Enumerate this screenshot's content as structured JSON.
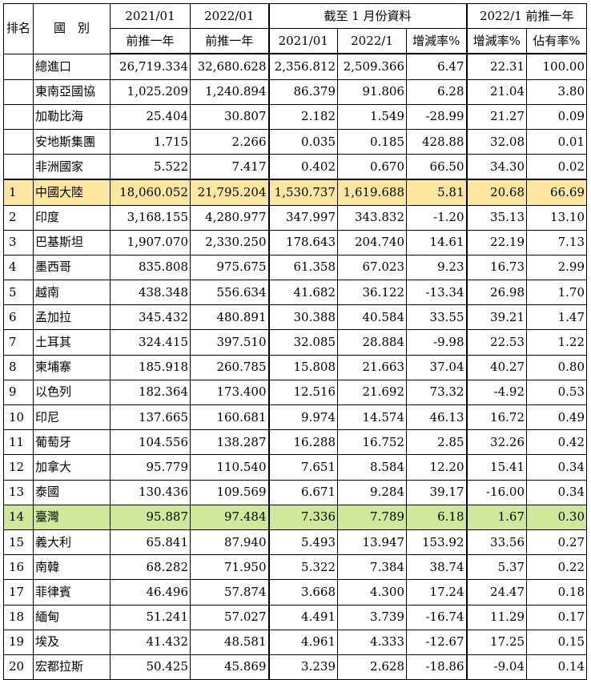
{
  "header": {
    "rank": "排名",
    "country": "國　別",
    "col_2021_line1": "2021/01",
    "col_2021_line2": "前推一年",
    "col_2022_line1": "2022/01",
    "col_2022_line2": "前推一年",
    "jan_group": "截至 1 月份資料",
    "jan_2021": "2021/01",
    "jan_2022": "2022/1",
    "jan_change": "增減率%",
    "trail_group": "2022/1 前推一年",
    "trail_change": "增減率%",
    "trail_share": "佔有率%"
  },
  "summary_rows": [
    {
      "rank": "",
      "name": "總進口",
      "v2021": "26,719.334",
      "v2022": "32,680.628",
      "j2021": "2,356.812",
      "j2022": "2,509.366",
      "jchg": "6.47",
      "tchg": "22.31",
      "share": "100.00"
    },
    {
      "rank": "",
      "name": "東南亞國協",
      "v2021": "1,025.209",
      "v2022": "1,240.894",
      "j2021": "86.379",
      "j2022": "91.806",
      "jchg": "6.28",
      "tchg": "21.04",
      "share": "3.80"
    },
    {
      "rank": "",
      "name": "加勒比海",
      "v2021": "25.404",
      "v2022": "30.807",
      "j2021": "2.182",
      "j2022": "1.549",
      "jchg": "-28.99",
      "tchg": "21.27",
      "share": "0.09"
    },
    {
      "rank": "",
      "name": "安地斯集團",
      "v2021": "1.715",
      "v2022": "2.266",
      "j2021": "0.035",
      "j2022": "0.185",
      "jchg": "428.88",
      "tchg": "32.08",
      "share": "0.01"
    },
    {
      "rank": "",
      "name": "非洲國家",
      "v2021": "5.522",
      "v2022": "7.417",
      "j2021": "0.402",
      "j2022": "0.670",
      "jchg": "66.50",
      "tchg": "34.30",
      "share": "0.02"
    }
  ],
  "ranked_rows": [
    {
      "rank": "1",
      "name": "中國大陸",
      "v2021": "18,060.052",
      "v2022": "21,795.204",
      "j2021": "1,530.737",
      "j2022": "1,619.688",
      "jchg": "5.81",
      "tchg": "20.68",
      "share": "66.69"
    },
    {
      "rank": "2",
      "name": "印度",
      "v2021": "3,168.155",
      "v2022": "4,280.977",
      "j2021": "347.997",
      "j2022": "343.832",
      "jchg": "-1.20",
      "tchg": "35.13",
      "share": "13.10"
    },
    {
      "rank": "3",
      "name": "巴基斯坦",
      "v2021": "1,907.070",
      "v2022": "2,330.250",
      "j2021": "178.643",
      "j2022": "204.740",
      "jchg": "14.61",
      "tchg": "22.19",
      "share": "7.13"
    },
    {
      "rank": "4",
      "name": "墨西哥",
      "v2021": "835.808",
      "v2022": "975.675",
      "j2021": "61.358",
      "j2022": "67.023",
      "jchg": "9.23",
      "tchg": "16.73",
      "share": "2.99"
    },
    {
      "rank": "5",
      "name": "越南",
      "v2021": "438.348",
      "v2022": "556.634",
      "j2021": "41.682",
      "j2022": "36.122",
      "jchg": "-13.34",
      "tchg": "26.98",
      "share": "1.70"
    },
    {
      "rank": "6",
      "name": "孟加拉",
      "v2021": "345.432",
      "v2022": "480.891",
      "j2021": "30.388",
      "j2022": "40.584",
      "jchg": "33.55",
      "tchg": "39.21",
      "share": "1.47"
    },
    {
      "rank": "7",
      "name": "土耳其",
      "v2021": "324.415",
      "v2022": "397.510",
      "j2021": "32.085",
      "j2022": "28.884",
      "jchg": "-9.98",
      "tchg": "22.53",
      "share": "1.22"
    },
    {
      "rank": "8",
      "name": "柬埔寨",
      "v2021": "185.918",
      "v2022": "260.785",
      "j2021": "15.808",
      "j2022": "21.663",
      "jchg": "37.04",
      "tchg": "40.27",
      "share": "0.80"
    },
    {
      "rank": "9",
      "name": "以色列",
      "v2021": "182.364",
      "v2022": "173.400",
      "j2021": "12.516",
      "j2022": "21.692",
      "jchg": "73.32",
      "tchg": "-4.92",
      "share": "0.53"
    },
    {
      "rank": "10",
      "name": "印尼",
      "v2021": "137.665",
      "v2022": "160.681",
      "j2021": "9.974",
      "j2022": "14.574",
      "jchg": "46.13",
      "tchg": "16.72",
      "share": "0.49"
    },
    {
      "rank": "11",
      "name": "葡萄牙",
      "v2021": "104.556",
      "v2022": "138.287",
      "j2021": "16.288",
      "j2022": "16.752",
      "jchg": "2.85",
      "tchg": "32.26",
      "share": "0.42"
    },
    {
      "rank": "12",
      "name": "加拿大",
      "v2021": "95.779",
      "v2022": "110.540",
      "j2021": "7.651",
      "j2022": "8.584",
      "jchg": "12.20",
      "tchg": "15.41",
      "share": "0.34"
    },
    {
      "rank": "13",
      "name": "泰國",
      "v2021": "130.436",
      "v2022": "109.569",
      "j2021": "6.671",
      "j2022": "9.284",
      "jchg": "39.17",
      "tchg": "-16.00",
      "share": "0.34"
    },
    {
      "rank": "14",
      "name": "臺灣",
      "v2021": "95.887",
      "v2022": "97.484",
      "j2021": "7.336",
      "j2022": "7.789",
      "jchg": "6.18",
      "tchg": "1.67",
      "share": "0.30"
    },
    {
      "rank": "15",
      "name": "義大利",
      "v2021": "65.841",
      "v2022": "87.940",
      "j2021": "5.493",
      "j2022": "13.947",
      "jchg": "153.92",
      "tchg": "33.56",
      "share": "0.27"
    },
    {
      "rank": "16",
      "name": "南韓",
      "v2021": "68.282",
      "v2022": "71.950",
      "j2021": "5.322",
      "j2022": "7.384",
      "jchg": "38.74",
      "tchg": "5.37",
      "share": "0.22"
    },
    {
      "rank": "17",
      "name": "菲律賓",
      "v2021": "46.496",
      "v2022": "57.874",
      "j2021": "3.668",
      "j2022": "4.300",
      "jchg": "17.24",
      "tchg": "24.47",
      "share": "0.18"
    },
    {
      "rank": "18",
      "name": "緬甸",
      "v2021": "51.241",
      "v2022": "57.027",
      "j2021": "4.491",
      "j2022": "3.739",
      "jchg": "-16.74",
      "tchg": "11.29",
      "share": "0.17"
    },
    {
      "rank": "19",
      "name": "埃及",
      "v2021": "41.432",
      "v2022": "48.581",
      "j2021": "4.961",
      "j2022": "4.333",
      "jchg": "-12.67",
      "tchg": "17.25",
      "share": "0.15"
    },
    {
      "rank": "20",
      "name": "宏都拉斯",
      "v2021": "50.425",
      "v2022": "45.869",
      "j2021": "3.239",
      "j2022": "2.628",
      "jchg": "-18.86",
      "tchg": "-9.04",
      "share": "0.14"
    }
  ],
  "highlights": {
    "china_color": "#fde7a0",
    "taiwan_color": "#cfe89c"
  }
}
